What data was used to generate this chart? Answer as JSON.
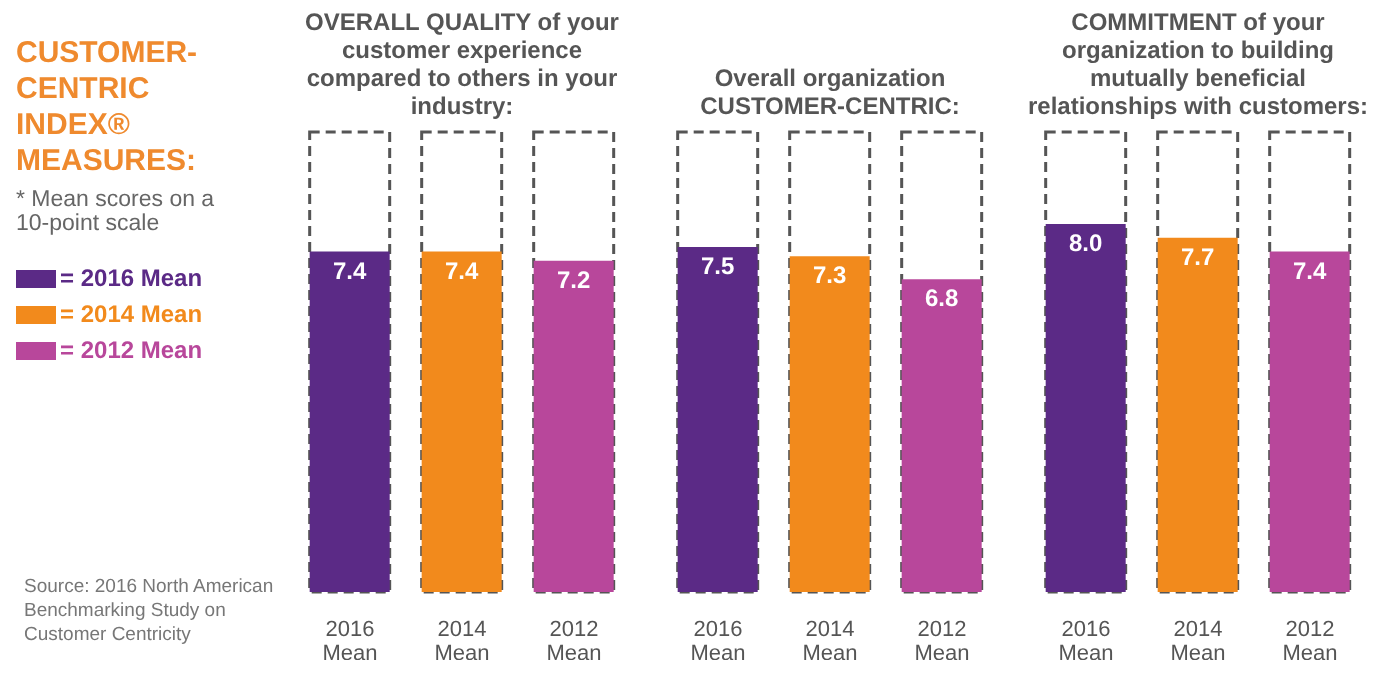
{
  "chart_data": [
    {
      "type": "other",
      "title": "CUSTOMER-CENTRIC INDEX® MEASURES:",
      "subtitle": "* Mean scores on a 10-point scale",
      "colors": [
        "#5b2a86",
        "#f28a1c",
        "#b8479b"
      ],
      "annotations": [
        "= 2016 Mean",
        "= 2014 Mean",
        "= 2012 Mean",
        "Source: 2016 North American Benchmarking Study on Customer Centricity"
      ]
    },
    {
      "type": "bar",
      "title": "OVERALL QUALITY of your customer experience compared to others in your industry:",
      "categories": [
        "2016 Mean",
        "2014 Mean",
        "2012 Mean"
      ],
      "values": [
        7.4,
        7.4,
        7.2
      ],
      "value_labels": [
        "7.4",
        "7.4",
        "7.2"
      ],
      "colors": [
        "#5b2a86",
        "#f28a1c",
        "#b8479b"
      ],
      "ylim": [
        0,
        10
      ],
      "tick_labels": "x",
      "grid": false,
      "legend": false
    },
    {
      "type": "bar",
      "title": "Overall organization CUSTOMER-CENTRIC:",
      "categories": [
        "2016 Mean",
        "2014 Mean",
        "2012 Mean"
      ],
      "values": [
        7.5,
        7.3,
        6.8
      ],
      "value_labels": [
        "7.5",
        "7.3",
        "6.8"
      ],
      "colors": [
        "#5b2a86",
        "#f28a1c",
        "#b8479b"
      ],
      "ylim": [
        0,
        10
      ],
      "tick_labels": "x",
      "grid": false,
      "legend": false
    },
    {
      "type": "bar",
      "title": "COMMITMENT of your organization to building mutually beneficial relationships with customers:",
      "categories": [
        "2016 Mean",
        "2014 Mean",
        "2012 Mean"
      ],
      "values": [
        8.0,
        7.7,
        7.4
      ],
      "value_labels": [
        "8.0",
        "7.7",
        "7.4"
      ],
      "colors": [
        "#5b2a86",
        "#f28a1c",
        "#b8479b"
      ],
      "ylim": [
        0,
        10
      ],
      "tick_labels": "x",
      "grid": false,
      "legend": false
    }
  ]
}
